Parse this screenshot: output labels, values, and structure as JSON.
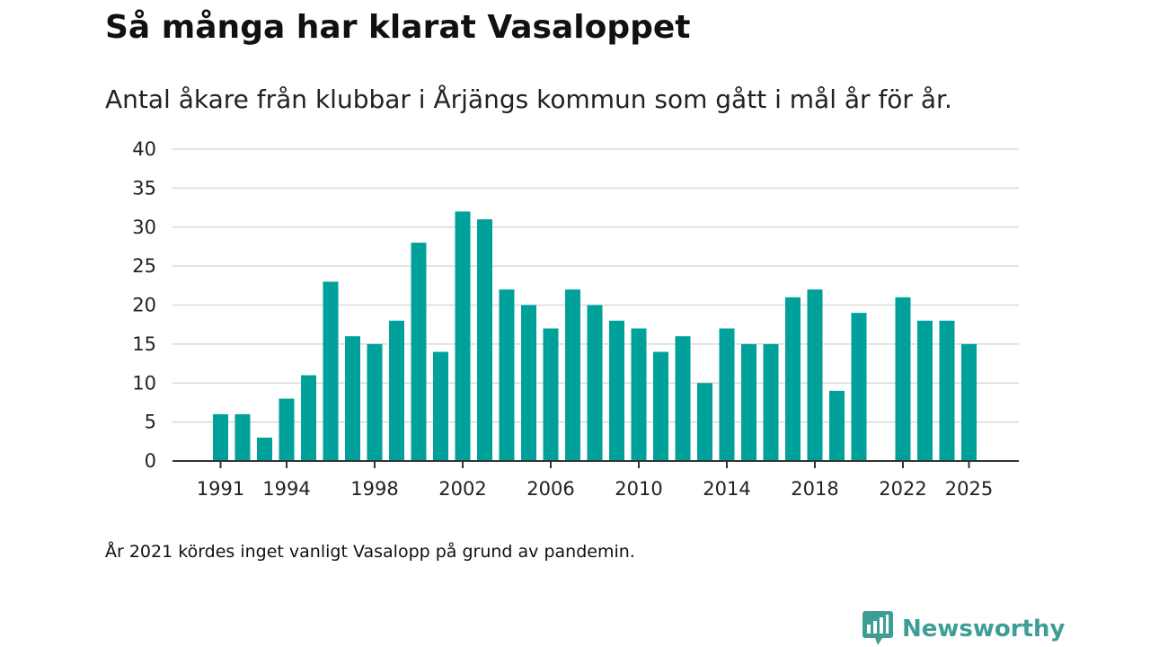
{
  "chart_data": {
    "type": "bar",
    "title": "Så många har klarat Vasaloppet",
    "subtitle": "Antal åkare från klubbar i Årjängs kommun som gått i mål år för år.",
    "xlabel": "",
    "ylabel": "",
    "ylim": [
      0,
      40
    ],
    "yticks": [
      0,
      5,
      10,
      15,
      20,
      25,
      30,
      35,
      40
    ],
    "categories": [
      1991,
      1992,
      1993,
      1994,
      1995,
      1996,
      1997,
      1998,
      1999,
      2000,
      2001,
      2002,
      2003,
      2004,
      2005,
      2006,
      2007,
      2008,
      2009,
      2010,
      2011,
      2012,
      2013,
      2014,
      2015,
      2016,
      2017,
      2018,
      2019,
      2020,
      2021,
      2022,
      2023,
      2024,
      2025
    ],
    "values": [
      6,
      6,
      3,
      8,
      11,
      23,
      16,
      15,
      18,
      28,
      14,
      32,
      31,
      22,
      20,
      17,
      22,
      20,
      18,
      17,
      14,
      16,
      10,
      17,
      15,
      15,
      21,
      22,
      9,
      19,
      null,
      21,
      18,
      18,
      15
    ],
    "xtick_labels": [
      1991,
      1994,
      1998,
      2002,
      2006,
      2010,
      2014,
      2018,
      2022,
      2025
    ],
    "bar_color": "#00a19a",
    "grid": true,
    "note": "År 2021 kördes inget vanligt Vasalopp på grund av pandemin."
  },
  "brand": {
    "name": "Newsworthy",
    "color": "#3d9e96"
  }
}
